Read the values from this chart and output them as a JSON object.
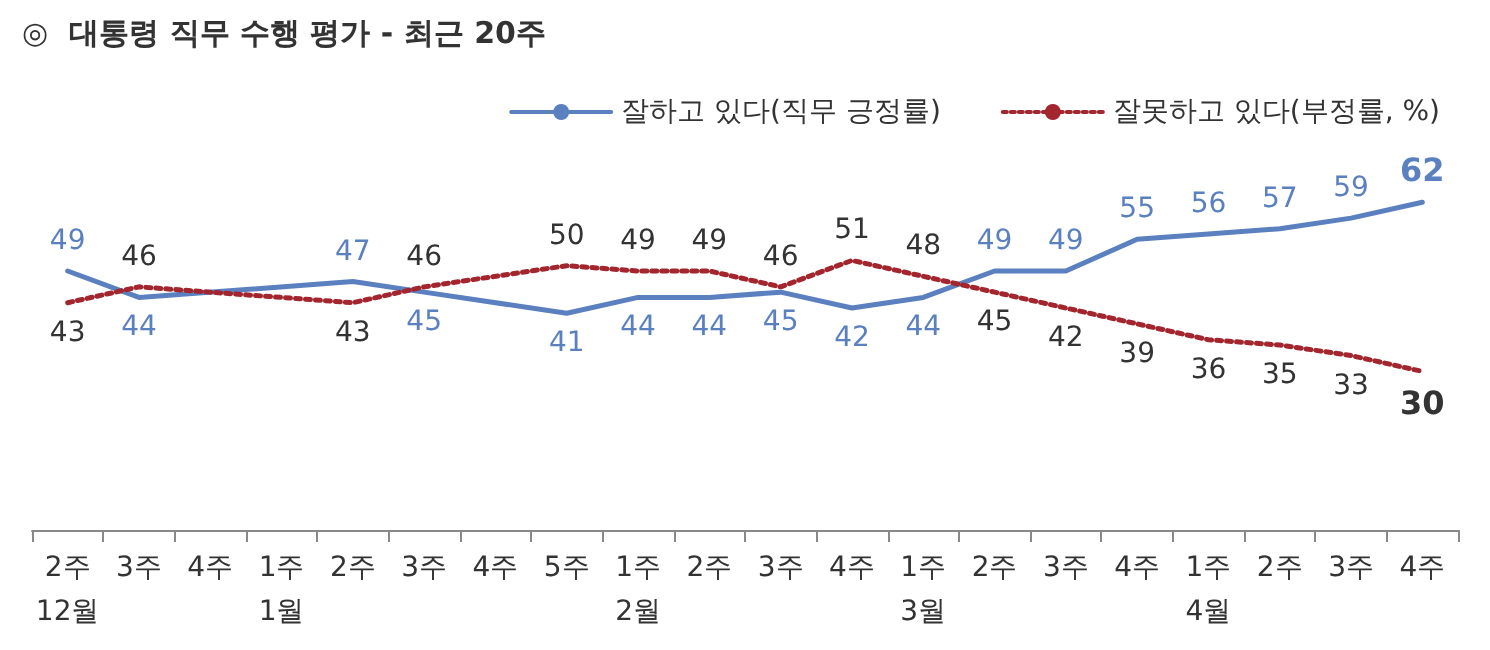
{
  "chart_data": {
    "type": "line",
    "title": "◎  대통령 직무 수행 평가 - 최근 20주",
    "categories": [
      "2주\n12월",
      "3주",
      "4주",
      "1주\n1월",
      "2주",
      "3주",
      "4주",
      "5주",
      "1주\n2월",
      "2주",
      "3주",
      "4주",
      "1주\n3월",
      "2주",
      "3주",
      "4주",
      "1주\n4월",
      "2주",
      "3주",
      "4주"
    ],
    "series": [
      {
        "name": "잘하고 있다(직무 긍정률)",
        "color": "#5b80c0",
        "line_style": "solid",
        "values": [
          49,
          44,
          null,
          null,
          47,
          45,
          null,
          41,
          44,
          44,
          45,
          42,
          44,
          49,
          49,
          55,
          56,
          57,
          59,
          62
        ]
      },
      {
        "name": "잘못하고 있다(부정률, %)",
        "color": "#a3262e",
        "line_style": "dotted",
        "values": [
          43,
          46,
          null,
          null,
          43,
          46,
          null,
          50,
          49,
          49,
          46,
          51,
          48,
          45,
          42,
          39,
          36,
          35,
          33,
          30
        ]
      }
    ],
    "data_labels": true,
    "legend": "top right",
    "grid": false,
    "marker": "none"
  }
}
